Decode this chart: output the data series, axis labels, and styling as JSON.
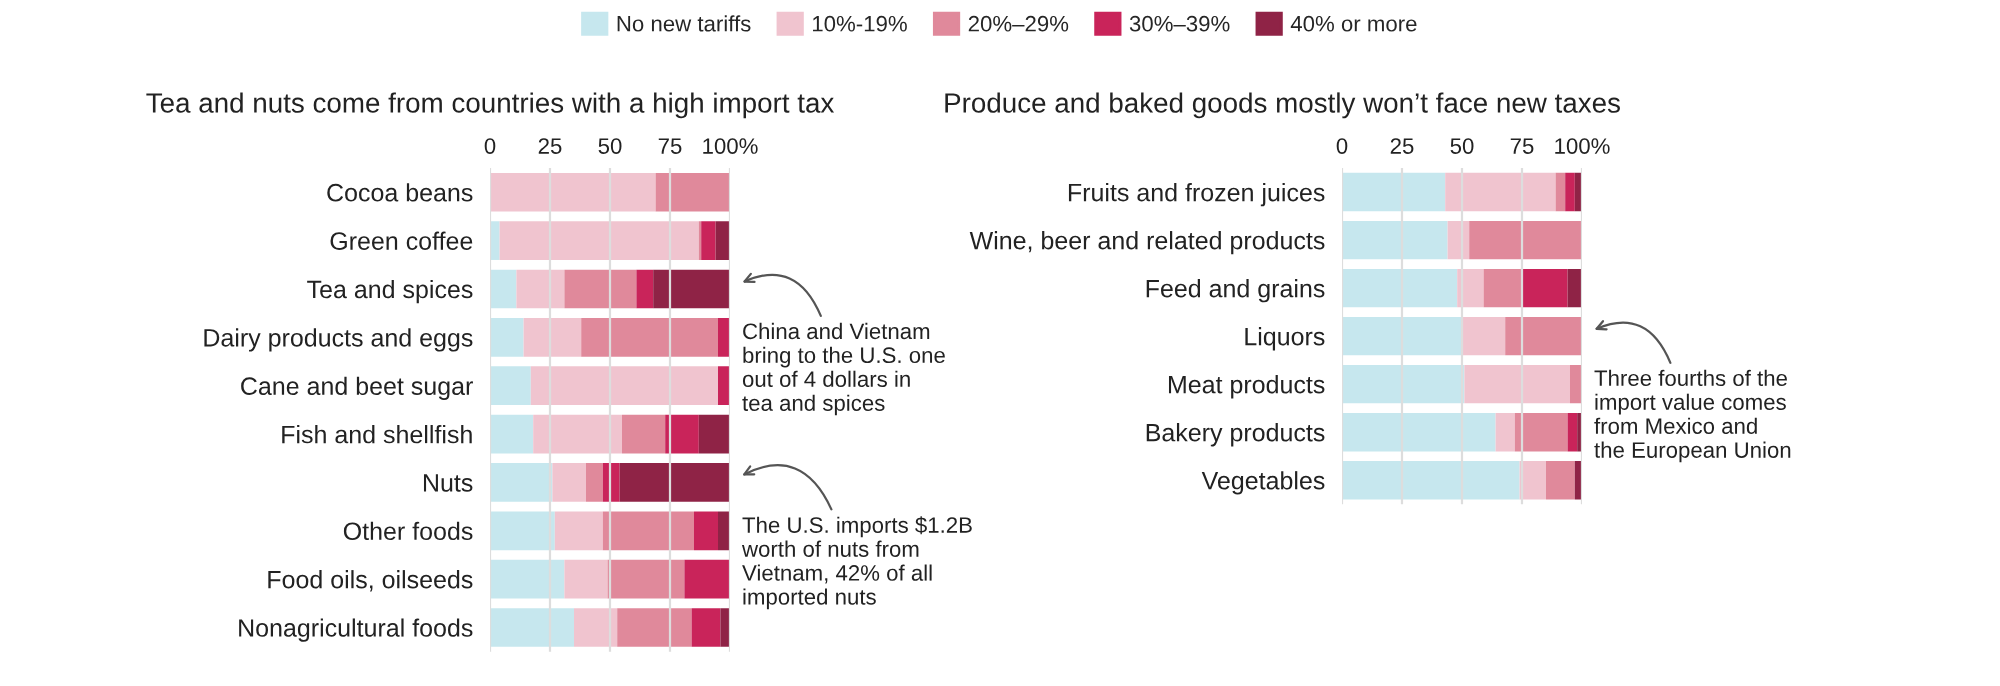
{
  "chart_data": [
    {
      "type": "bar",
      "orientation": "horizontal",
      "stacked": true,
      "title": "Tea and nuts come from countries with a high import tax",
      "legend": "top",
      "grid": "x",
      "xlim": [
        0,
        100
      ],
      "xticks": [
        0,
        25,
        50,
        {
          "value": 100,
          "label": "100%"
        },
        75
      ],
      "categories": [
        "Cocoa beans",
        "Green coffee",
        "Tea and spices",
        "Dairy products and eggs",
        "Cane and beet sugar",
        "Fish and shellfish",
        "Nuts",
        "Other foods",
        "Food oils, oilseeds",
        "Nonagricultural foods"
      ],
      "series": [
        {
          "name": "No new tariffs",
          "color": "#c6e7ee",
          "values": [
            0,
            4,
            11,
            14,
            17,
            18,
            26,
            27,
            31,
            35
          ]
        },
        {
          "name": "10%-19%",
          "color": "#f0c4cf",
          "values": [
            69,
            83,
            20,
            24,
            78,
            37,
            14,
            20,
            18,
            18
          ]
        },
        {
          "name": "20%‒29%",
          "color": "#e0899b",
          "values": [
            31,
            1,
            30,
            57,
            0,
            18,
            7,
            38,
            32,
            31
          ]
        },
        {
          "name": "30%‒39%",
          "color": "#c9245a",
          "values": [
            0,
            6,
            7,
            5,
            5,
            14,
            7,
            10,
            19,
            12
          ]
        },
        {
          "name": "40% or more",
          "color": "#8f2346",
          "values": [
            0,
            6,
            32,
            0,
            0,
            13,
            46,
            5,
            0,
            4
          ]
        }
      ],
      "annotations": [
        "China and Vietnam\nbring to the U.S. one\nout of 4 dollars in\ntea and spices",
        "The U.S. imports $1.2B\nworth of nuts from\nVietnam, 42% of all\nimported nuts"
      ]
    },
    {
      "type": "bar",
      "orientation": "horizontal",
      "stacked": true,
      "title": "Produce and baked goods mostly won’t face new taxes",
      "grid": "x",
      "xlim": [
        0,
        100
      ],
      "xticks": [
        0,
        25,
        50,
        75,
        {
          "value": 100,
          "label": "100%"
        }
      ],
      "categories": [
        "Fruits and frozen juices",
        "Wine, beer and related products",
        "Feed and grains",
        "Liquors",
        "Meat products",
        "Bakery products",
        "Vegetables"
      ],
      "series": [
        {
          "color": "#c6e7ee",
          "values": [
            43,
            44,
            48,
            50,
            51,
            64,
            74
          ]
        },
        {
          "color": "#f0c4cf",
          "values": [
            46,
            9,
            11,
            18,
            44,
            8,
            11
          ]
        },
        {
          "color": "#e0899b",
          "values": [
            4,
            47,
            16,
            32,
            5,
            22,
            12
          ]
        },
        {
          "color": "#c9245a",
          "values": [
            4,
            0,
            19,
            0,
            0,
            4,
            0
          ]
        },
        {
          "color": "#8f2346",
          "values": [
            3,
            0,
            6,
            0,
            0,
            2,
            3
          ]
        }
      ],
      "annotations": [
        "Three fourths of the\nimport value comes\nfrom Mexico and\nthe European Union"
      ]
    }
  ]
}
